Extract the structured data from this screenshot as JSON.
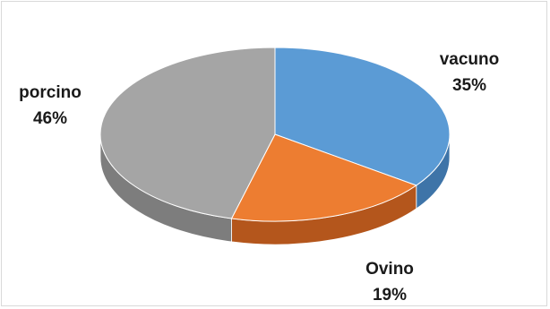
{
  "chart_data": {
    "type": "pie",
    "title": "",
    "three_d": true,
    "slices": [
      {
        "label": "vacuno",
        "percent_label": "35%",
        "value": 35,
        "color": "#5b9bd5",
        "side_color": "#3e74a8"
      },
      {
        "label": "Ovino",
        "percent_label": "19%",
        "value": 19,
        "color": "#ed7d31",
        "side_color": "#b4561c"
      },
      {
        "label": "porcino",
        "percent_label": "46%",
        "value": 46,
        "color": "#a5a5a5",
        "side_color": "#7d7d7d"
      }
    ]
  }
}
